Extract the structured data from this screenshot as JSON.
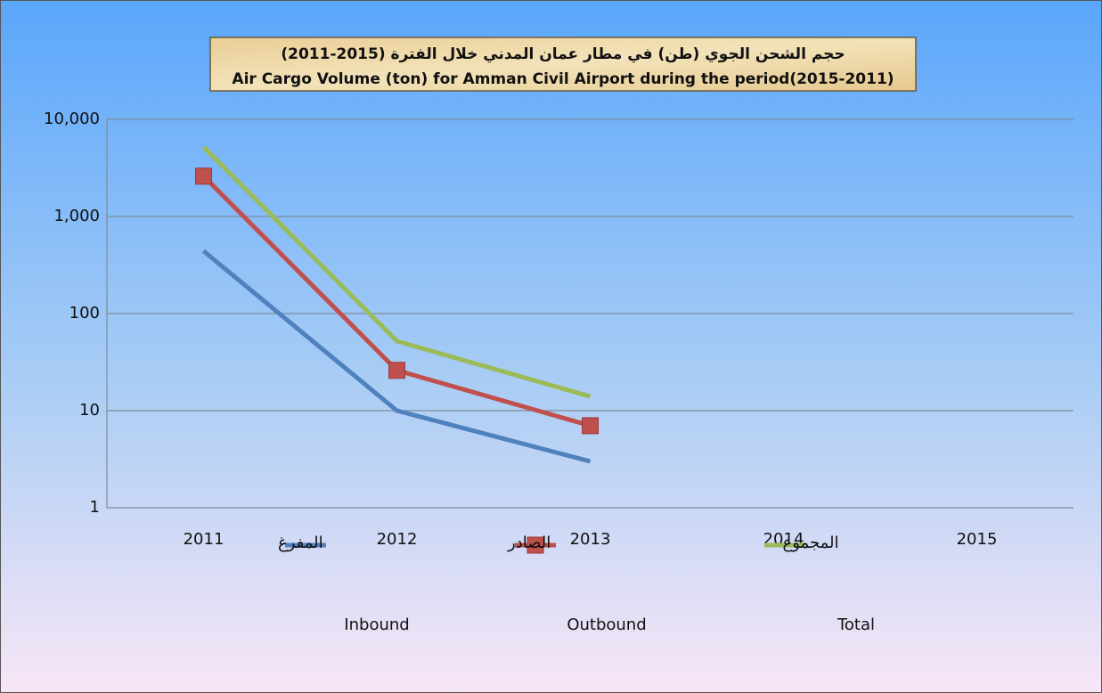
{
  "chart_data": {
    "type": "line",
    "title": "حجم الشحن الجوي (طن) في مطار عمان المدني خلال الفترة (2015-2011)",
    "title_en": "Air Cargo Volume (ton) for Amman Civil Airport during the period(2015-2011)",
    "categories": [
      "2011",
      "2012",
      "2013",
      "2014",
      "2015"
    ],
    "series": [
      {
        "name": "المفرغ",
        "name_en": "Inbound",
        "color": "#4f81bd",
        "marker": "none",
        "values": [
          440,
          10,
          3,
          null,
          null
        ]
      },
      {
        "name": "الصادر",
        "name_en": "Outbound",
        "color": "#c0504d",
        "marker": "square",
        "values": [
          2600,
          26,
          7,
          null,
          null
        ]
      },
      {
        "name": "المجموع",
        "name_en": "Total",
        "color": "#9bbb59",
        "marker": "none",
        "values": [
          5200,
          52,
          14,
          null,
          null
        ]
      }
    ],
    "ylim": [
      1,
      10000
    ],
    "log_scale": true,
    "yticks": [
      1,
      10,
      100,
      {
        "value": 1000,
        "label": "1,000"
      },
      {
        "value": 10000,
        "label": "10,000"
      }
    ],
    "grid": true,
    "legend": "bottom"
  }
}
